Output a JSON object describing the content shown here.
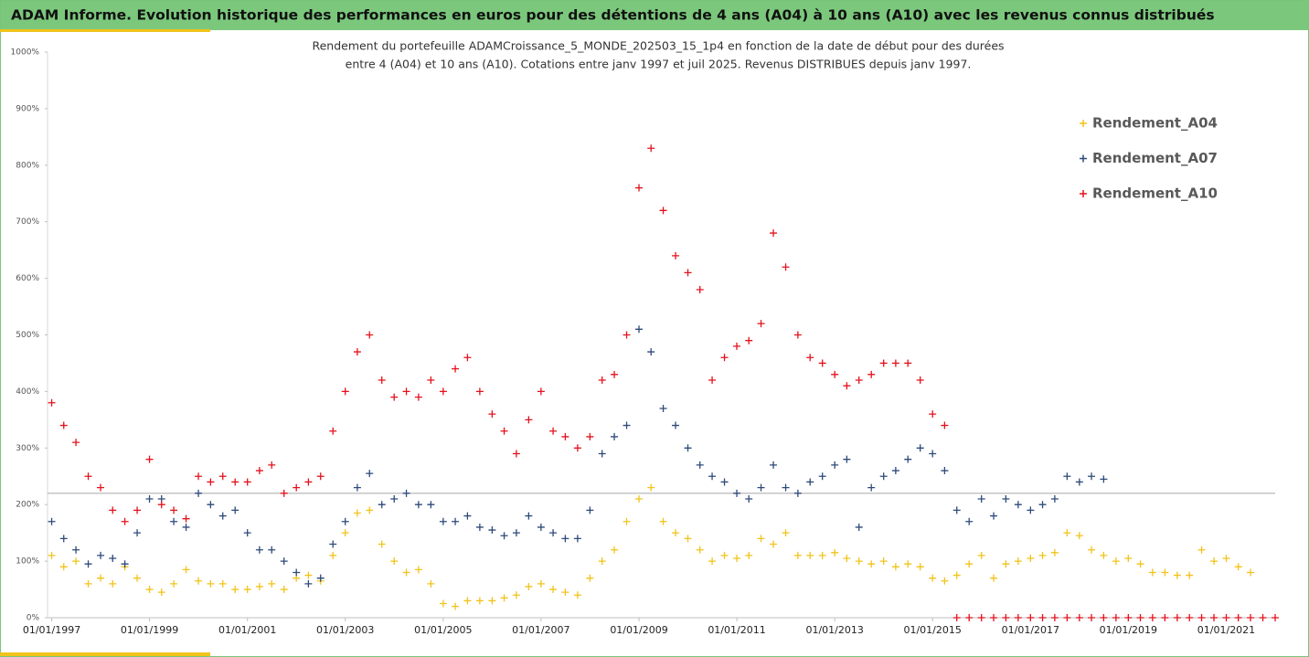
{
  "chart_data": {
    "type": "scatter",
    "title": "ADAM Informe. Evolution historique des performances en euros pour des détentions de 4 ans (A04) à 10 ans (A10) avec les revenus connus distribués",
    "subtitle": [
      "Rendement du portefeuille ADAMCroissance_5_MONDE_202503_15_1p4  en fonction de la date de début pour des durées",
      "entre 4 (A04) et 10 ans (A10). Cotations entre janv 1997 et juil 2025. Revenus DISTRIBUES depuis janv 1997."
    ],
    "x": [
      "1997-01-01",
      "1997-04-01",
      "1997-07-01",
      "1997-10-01",
      "1998-01-01",
      "1998-04-01",
      "1998-07-01",
      "1998-10-01",
      "1999-01-01",
      "1999-04-01",
      "1999-07-01",
      "1999-10-01",
      "2000-01-01",
      "2000-04-01",
      "2000-07-01",
      "2000-10-01",
      "2001-01-01",
      "2001-04-01",
      "2001-07-01",
      "2001-10-01",
      "2002-01-01",
      "2002-04-01",
      "2002-07-01",
      "2002-10-01",
      "2003-01-01",
      "2003-04-01",
      "2003-07-01",
      "2003-10-01",
      "2004-01-01",
      "2004-04-01",
      "2004-07-01",
      "2004-10-01",
      "2005-01-01",
      "2005-04-01",
      "2005-07-01",
      "2005-10-01",
      "2006-01-01",
      "2006-04-01",
      "2006-07-01",
      "2006-10-01",
      "2007-01-01",
      "2007-04-01",
      "2007-07-01",
      "2007-10-01",
      "2008-01-01",
      "2008-04-01",
      "2008-07-01",
      "2008-10-01",
      "2009-01-01",
      "2009-04-01",
      "2009-07-01",
      "2009-10-01",
      "2010-01-01",
      "2010-04-01",
      "2010-07-01",
      "2010-10-01",
      "2011-01-01",
      "2011-04-01",
      "2011-07-01",
      "2011-10-01",
      "2012-01-01",
      "2012-04-01",
      "2012-07-01",
      "2012-10-01",
      "2013-01-01",
      "2013-04-01",
      "2013-07-01",
      "2013-10-01",
      "2014-01-01",
      "2014-04-01",
      "2014-07-01",
      "2014-10-01",
      "2015-01-01",
      "2015-04-01",
      "2015-07-01",
      "2015-10-01",
      "2016-01-01",
      "2016-04-01",
      "2016-07-01",
      "2016-10-01",
      "2017-01-01",
      "2017-04-01",
      "2017-07-01",
      "2017-10-01",
      "2018-01-01",
      "2018-04-01",
      "2018-07-01",
      "2018-10-01",
      "2019-01-01",
      "2019-04-01",
      "2019-07-01",
      "2019-10-01",
      "2020-01-01",
      "2020-04-01",
      "2020-07-01",
      "2020-10-01",
      "2021-01-01",
      "2021-04-01",
      "2021-07-01",
      "2021-10-01",
      "2022-01-01"
    ],
    "series": [
      {
        "name": "Rendement_A04",
        "color": "#f2c31a",
        "values": [
          110,
          90,
          100,
          60,
          70,
          60,
          90,
          70,
          50,
          45,
          60,
          85,
          65,
          60,
          60,
          50,
          50,
          55,
          60,
          50,
          70,
          75,
          65,
          110,
          150,
          185,
          190,
          130,
          100,
          80,
          85,
          60,
          25,
          20,
          30,
          30,
          30,
          35,
          40,
          55,
          60,
          50,
          45,
          40,
          70,
          100,
          120,
          170,
          210,
          230,
          170,
          150,
          140,
          120,
          100,
          110,
          105,
          110,
          140,
          130,
          150,
          110,
          110,
          110,
          115,
          105,
          100,
          95,
          100,
          90,
          95,
          90,
          70,
          65,
          75,
          95,
          110,
          70,
          95,
          100,
          105,
          110,
          115,
          150,
          145,
          120,
          110,
          100,
          105,
          95,
          80,
          80,
          75,
          75,
          120,
          100,
          105,
          90,
          80,
          null,
          null
        ]
      },
      {
        "name": "Rendement_A07",
        "color": "#2e4a7a",
        "values": [
          170,
          140,
          120,
          95,
          110,
          105,
          95,
          150,
          210,
          210,
          170,
          160,
          220,
          200,
          180,
          190,
          150,
          120,
          120,
          100,
          80,
          60,
          70,
          130,
          170,
          230,
          255,
          200,
          210,
          220,
          200,
          200,
          170,
          170,
          180,
          160,
          155,
          145,
          150,
          180,
          160,
          150,
          140,
          140,
          190,
          290,
          320,
          340,
          510,
          470,
          370,
          340,
          300,
          270,
          250,
          240,
          220,
          210,
          230,
          270,
          230,
          220,
          240,
          250,
          270,
          280,
          160,
          230,
          250,
          260,
          280,
          300,
          290,
          260,
          190,
          170,
          210,
          180,
          210,
          200,
          190,
          200,
          210,
          250,
          240,
          250,
          245,
          null,
          null,
          null,
          null,
          null,
          null,
          null,
          null,
          null,
          null,
          null,
          null,
          null,
          null
        ]
      },
      {
        "name": "Rendement_A10",
        "color": "#e3121c",
        "values": [
          380,
          340,
          310,
          250,
          230,
          190,
          170,
          190,
          280,
          200,
          190,
          175,
          250,
          240,
          250,
          240,
          240,
          260,
          270,
          220,
          230,
          240,
          250,
          330,
          400,
          470,
          500,
          420,
          390,
          400,
          390,
          420,
          400,
          440,
          460,
          400,
          360,
          330,
          290,
          350,
          400,
          330,
          320,
          300,
          320,
          420,
          430,
          500,
          760,
          830,
          720,
          640,
          610,
          580,
          420,
          460,
          480,
          490,
          520,
          680,
          620,
          500,
          460,
          450,
          430,
          410,
          420,
          430,
          450,
          450,
          450,
          420,
          360,
          340,
          0,
          0,
          0,
          0,
          0,
          0,
          0,
          0,
          0,
          0,
          0,
          0,
          0,
          0,
          0,
          0,
          0,
          0,
          0,
          0,
          0,
          0,
          0,
          0,
          0,
          0,
          0
        ]
      }
    ],
    "xlim": [
      "1996-12-01",
      "2022-01-01"
    ],
    "xticks": [
      {
        "value": "1997-01-01",
        "label": "01/01/1997"
      },
      {
        "value": "1999-01-01",
        "label": "01/01/1999"
      },
      {
        "value": "2001-01-01",
        "label": "01/01/2001"
      },
      {
        "value": "2003-01-01",
        "label": "01/01/2003"
      },
      {
        "value": "2005-01-01",
        "label": "01/01/2005"
      },
      {
        "value": "2007-01-01",
        "label": "01/01/2007"
      },
      {
        "value": "2009-01-01",
        "label": "01/01/2009"
      },
      {
        "value": "2011-01-01",
        "label": "01/01/2011"
      },
      {
        "value": "2013-01-01",
        "label": "01/01/2013"
      },
      {
        "value": "2015-01-01",
        "label": "01/01/2015"
      },
      {
        "value": "2017-01-01",
        "label": "01/01/2017"
      },
      {
        "value": "2019-01-01",
        "label": "01/01/2019"
      },
      {
        "value": "2021-01-01",
        "label": "01/01/2021"
      }
    ],
    "ylim": [
      0,
      1000
    ],
    "yticks": [
      {
        "value": 0,
        "label": "0%"
      },
      {
        "value": 100,
        "label": "100%"
      },
      {
        "value": 200,
        "label": "200%"
      },
      {
        "value": 300,
        "label": "300%"
      },
      {
        "value": 400,
        "label": "400%"
      },
      {
        "value": 500,
        "label": "500%"
      },
      {
        "value": 600,
        "label": "600%"
      },
      {
        "value": 700,
        "label": "700%"
      },
      {
        "value": 800,
        "label": "800%"
      },
      {
        "value": 900,
        "label": "900%"
      },
      {
        "value": 1000,
        "label": "1000%"
      }
    ],
    "hline": 220,
    "grid": false,
    "legend": "upper right"
  }
}
